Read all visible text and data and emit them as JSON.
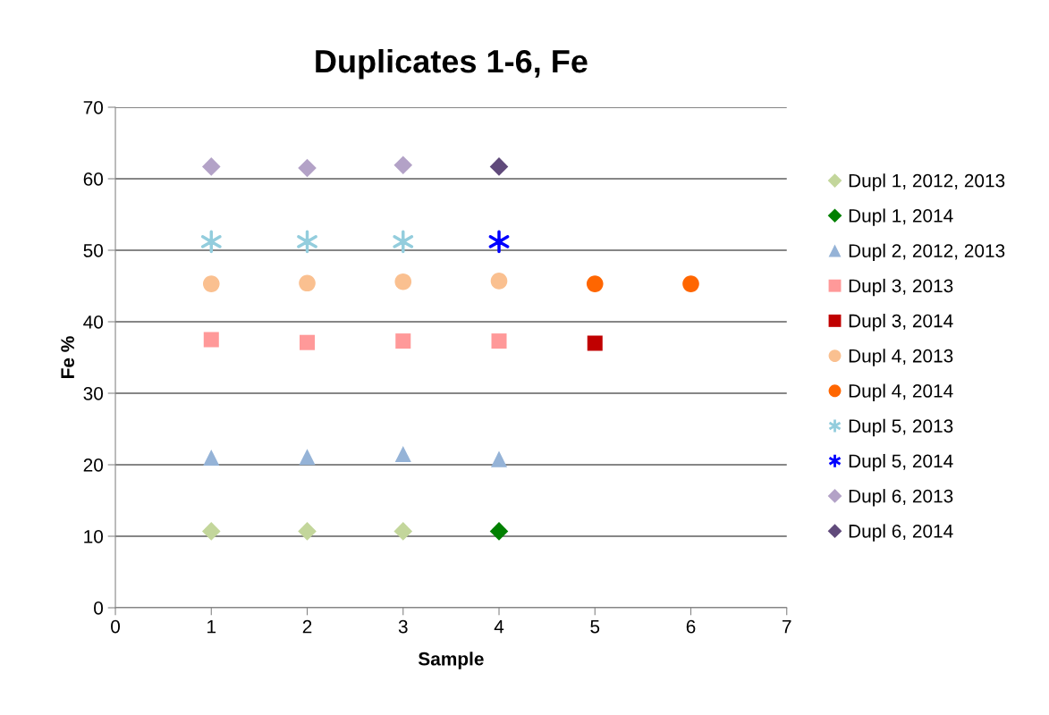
{
  "chart_data": {
    "type": "scatter",
    "title": "Duplicates 1-6, Fe",
    "xlabel": "Sample",
    "ylabel": "Fe %",
    "xlim": [
      0,
      7
    ],
    "xticks": [
      0,
      1,
      2,
      3,
      4,
      5,
      6,
      7
    ],
    "ylim": [
      0,
      70
    ],
    "yticks": [
      0,
      10,
      20,
      30,
      40,
      50,
      60,
      70
    ],
    "grid": "y",
    "legend": "right",
    "series": [
      {
        "name": "Dupl 1, 2012, 2013",
        "color": "#c3d69b",
        "marker": "diamond",
        "x": [
          1,
          2,
          3
        ],
        "values": [
          10.7,
          10.7,
          10.7
        ]
      },
      {
        "name": "Dupl 1, 2014",
        "color": "#008000",
        "marker": "diamond",
        "x": [
          4
        ],
        "values": [
          10.7
        ]
      },
      {
        "name": "Dupl 2, 2012, 2013",
        "color": "#95b3d7",
        "marker": "triangle",
        "x": [
          1,
          2,
          3,
          4
        ],
        "values": [
          21.0,
          21.1,
          21.5,
          20.8
        ]
      },
      {
        "name": "Dupl 3, 2013",
        "color": "#ff9999",
        "marker": "square",
        "x": [
          1,
          2,
          3,
          4
        ],
        "values": [
          37.5,
          37.1,
          37.3,
          37.3
        ]
      },
      {
        "name": "Dupl 3, 2014",
        "color": "#c00000",
        "marker": "square",
        "x": [
          5
        ],
        "values": [
          37.0
        ]
      },
      {
        "name": "Dupl 4, 2013",
        "color": "#fac090",
        "marker": "circle",
        "x": [
          1,
          2,
          3,
          4
        ],
        "values": [
          45.3,
          45.4,
          45.6,
          45.7
        ]
      },
      {
        "name": "Dupl 4, 2014",
        "color": "#ff6600",
        "marker": "circle",
        "x": [
          5,
          6
        ],
        "values": [
          45.3,
          45.3
        ]
      },
      {
        "name": "Dupl 5, 2013",
        "color": "#93cddd",
        "marker": "cross",
        "x": [
          1,
          2,
          3
        ],
        "values": [
          51.2,
          51.2,
          51.2
        ]
      },
      {
        "name": "Dupl 5, 2014",
        "color": "#0000ff",
        "marker": "cross",
        "x": [
          4
        ],
        "values": [
          51.2
        ]
      },
      {
        "name": "Dupl 6, 2013",
        "color": "#b3a2c7",
        "marker": "diamond",
        "x": [
          1,
          2,
          3
        ],
        "values": [
          61.7,
          61.5,
          61.9
        ]
      },
      {
        "name": "Dupl 6, 2014",
        "color": "#604a7b",
        "marker": "diamond",
        "x": [
          4
        ],
        "values": [
          61.7
        ]
      }
    ]
  }
}
